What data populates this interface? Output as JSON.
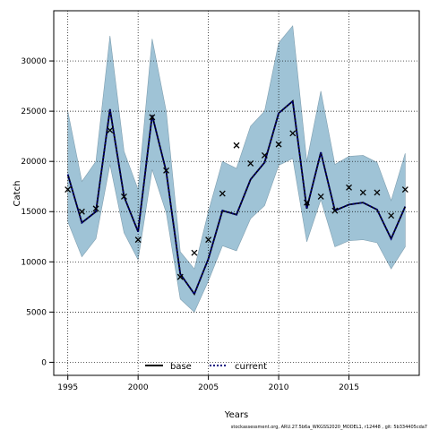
{
  "chart_data": {
    "type": "line",
    "title": "",
    "xlabel": "Years",
    "ylabel": "Catch",
    "xlim": [
      1994,
      2020
    ],
    "ylim": [
      -1300,
      35000
    ],
    "x_ticks": [
      1995,
      2000,
      2005,
      2010,
      2015
    ],
    "y_ticks": [
      0,
      5000,
      10000,
      15000,
      20000,
      25000,
      30000
    ],
    "grid": true,
    "legend": {
      "position": "bottom-center",
      "entries": [
        "base",
        "current"
      ]
    },
    "colors": {
      "band": "#9fc3d6",
      "band_edge": "#7f9fb0",
      "line": "#000000",
      "current": "#000080",
      "grid": "#000000"
    },
    "years": [
      1995,
      1996,
      1997,
      1998,
      1999,
      2000,
      2001,
      2002,
      2003,
      2004,
      2005,
      2006,
      2007,
      2008,
      2009,
      2010,
      2011,
      2012,
      2013,
      2014,
      2015,
      2016,
      2017,
      2018,
      2019
    ],
    "series": [
      {
        "name": "base",
        "style": "solid",
        "values": [
          18700,
          13900,
          15000,
          25200,
          16500,
          13000,
          24600,
          19000,
          8800,
          6800,
          10300,
          15100,
          14700,
          18200,
          19900,
          24800,
          26000,
          15300,
          20900,
          15100,
          15700,
          15900,
          15200,
          12300,
          15500
        ]
      },
      {
        "name": "current",
        "style": "dotted",
        "values": [
          18700,
          13900,
          15000,
          25200,
          16500,
          13000,
          24600,
          19000,
          8800,
          6800,
          10300,
          15100,
          14700,
          18200,
          19900,
          24800,
          26000,
          15300,
          20900,
          15100,
          15700,
          15900,
          15200,
          12300,
          15500
        ]
      }
    ],
    "band": {
      "upper": [
        25000,
        18000,
        20000,
        32500,
        21000,
        17200,
        32200,
        25000,
        11000,
        9300,
        15000,
        20000,
        19300,
        23500,
        25000,
        31800,
        33500,
        20000,
        27000,
        19700,
        20500,
        20600,
        19900,
        16100,
        20800
      ],
      "lower": [
        14000,
        10500,
        12300,
        19700,
        12900,
        10200,
        19200,
        14900,
        6300,
        5000,
        8100,
        11600,
        11100,
        14300,
        15600,
        19600,
        20300,
        12000,
        16200,
        11500,
        12100,
        12200,
        11900,
        9300,
        11500
      ]
    },
    "observations": [
      {
        "x": 1995,
        "y": 17200
      },
      {
        "x": 1996,
        "y": 15000
      },
      {
        "x": 1997,
        "y": 15300
      },
      {
        "x": 1998,
        "y": 23100
      },
      {
        "x": 1999,
        "y": 16500
      },
      {
        "x": 2000,
        "y": 12200
      },
      {
        "x": 2001,
        "y": 24400
      },
      {
        "x": 2002,
        "y": 19100
      },
      {
        "x": 2003,
        "y": 8500
      },
      {
        "x": 2004,
        "y": 10900
      },
      {
        "x": 2005,
        "y": 12200
      },
      {
        "x": 2006,
        "y": 16800
      },
      {
        "x": 2007,
        "y": 21600
      },
      {
        "x": 2008,
        "y": 19800
      },
      {
        "x": 2009,
        "y": 20600
      },
      {
        "x": 2010,
        "y": 21700
      },
      {
        "x": 2011,
        "y": 22800
      },
      {
        "x": 2012,
        "y": 15900
      },
      {
        "x": 2013,
        "y": 16500
      },
      {
        "x": 2014,
        "y": 15100
      },
      {
        "x": 2015,
        "y": 17400
      },
      {
        "x": 2016,
        "y": 16900
      },
      {
        "x": 2017,
        "y": 16900
      },
      {
        "x": 2018,
        "y": 14600
      },
      {
        "x": 2019,
        "y": 17200
      }
    ]
  },
  "footer": "stockassessment.org, ARU.27.5b6a_WKGSS2020_MODEL1, r12448 , git: 5b334405cda7"
}
